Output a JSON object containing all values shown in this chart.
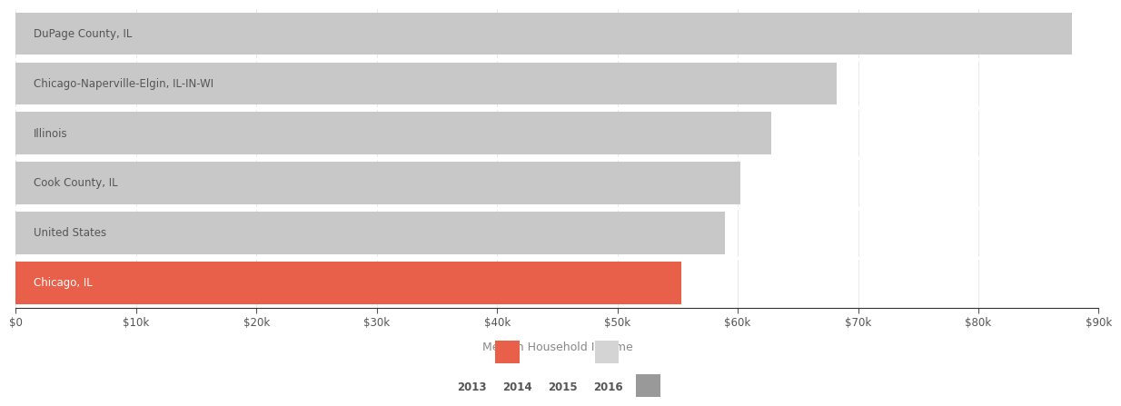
{
  "categories": [
    "Chicago, IL",
    "United States",
    "Cook County, IL",
    "Illinois",
    "Chicago-Naperville-Elgin, IL-IN-WI",
    "DuPage County, IL"
  ],
  "values": [
    55295,
    58900,
    60200,
    62800,
    68200,
    87800
  ],
  "bar_colors": [
    "#e8604a",
    "#c8c8c8",
    "#c8c8c8",
    "#c8c8c8",
    "#c8c8c8",
    "#c8c8c8"
  ],
  "xlabel": "Median Household Income",
  "xlim": [
    0,
    90000
  ],
  "xtick_values": [
    0,
    10000,
    20000,
    30000,
    40000,
    50000,
    60000,
    70000,
    80000,
    90000
  ],
  "xtick_labels": [
    "$0",
    "$10k",
    "$20k",
    "$30k",
    "$40k",
    "$50k",
    "$60k",
    "$70k",
    "$80k",
    "$90k"
  ],
  "background_color": "#ffffff",
  "chart_bg_color": "#f2f2f2",
  "bar_height": 0.85,
  "label_fontsize": 8.5,
  "tick_fontsize": 8.5,
  "xlabel_fontsize": 9,
  "label_color_dark": "#555555",
  "label_color_light": "#ffffff",
  "divider_color": "#ffffff",
  "spine_color": "#333333",
  "tick_color": "#555555",
  "legend_patch1_color": "#e8604a",
  "legend_patch2_color": "#d4d4d4",
  "legend_patch3_color": "#999999",
  "legend_year_labels": [
    "2013",
    "2014",
    "2015",
    "2016"
  ],
  "legend_year_color": "#555555",
  "legend_year_fontsize": 8.5
}
